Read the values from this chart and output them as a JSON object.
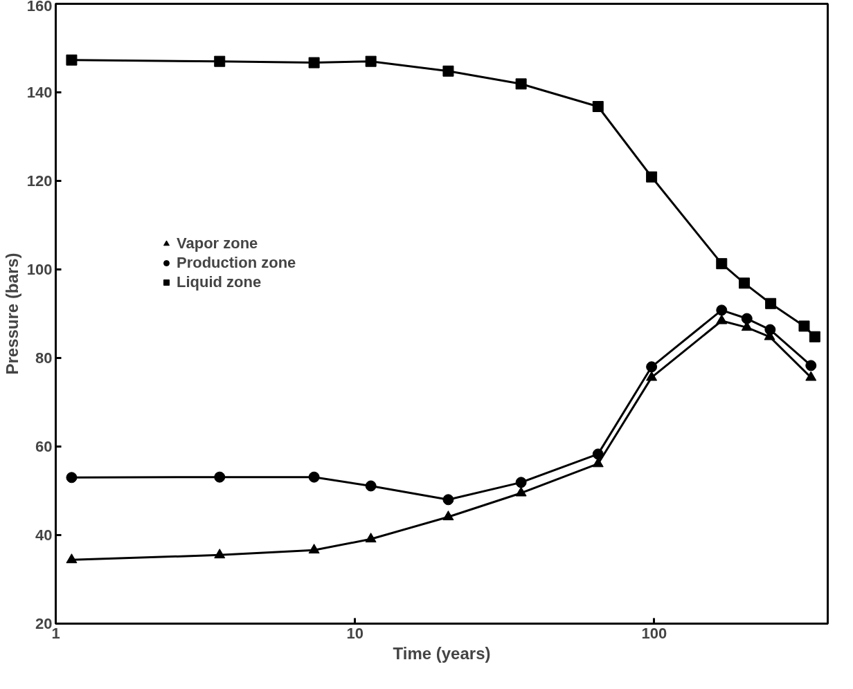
{
  "chart_data": {
    "type": "line",
    "xlabel": "Time (years)",
    "ylabel": "Pressure (bars)",
    "log": "x",
    "xlim": [
      1,
      380
    ],
    "xticks": [
      1,
      10,
      100
    ],
    "ylim": [
      20,
      160
    ],
    "yticks": [
      20,
      40,
      60,
      80,
      100,
      120,
      140,
      160
    ],
    "grid": false,
    "legend": "left",
    "series": [
      {
        "name": "Vapor zone",
        "color": "#000000",
        "marker": "triangle",
        "x": [
          1.13,
          3.53,
          7.3,
          11.3,
          20.5,
          35.9,
          64.9,
          98,
          168,
          204,
          243,
          334
        ],
        "values": [
          34.4,
          35.5,
          36.6,
          39.1,
          44.1,
          49.5,
          56.1,
          75.6,
          88.4,
          86.9,
          84.8,
          75.6
        ]
      },
      {
        "name": "Production zone",
        "color": "#000000",
        "marker": "circle",
        "x": [
          1.13,
          3.53,
          7.3,
          11.3,
          20.5,
          35.9,
          64.9,
          98,
          168,
          204,
          244,
          334
        ],
        "values": [
          53.0,
          53.1,
          53.1,
          51.1,
          48.0,
          51.9,
          58.3,
          78.0,
          90.8,
          88.9,
          86.4,
          78.3
        ]
      },
      {
        "name": "Liquid zone",
        "color": "#000000",
        "marker": "square",
        "x": [
          1.13,
          3.53,
          7.3,
          11.3,
          20.5,
          35.9,
          64.9,
          98,
          168,
          200,
          245,
          317,
          344
        ],
        "values": [
          147.3,
          147.0,
          146.7,
          147.0,
          144.8,
          141.9,
          136.8,
          120.9,
          101.3,
          96.9,
          92.3,
          87.2,
          84.8
        ]
      }
    ]
  }
}
